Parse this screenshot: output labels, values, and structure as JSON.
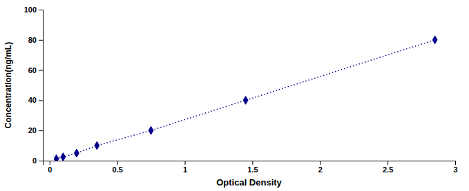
{
  "chart_data": {
    "type": "line",
    "x": [
      0.05,
      0.1,
      0.2,
      0.35,
      0.75,
      1.45,
      2.85
    ],
    "values": [
      1.25,
      2.5,
      5.0,
      10.0,
      20.0,
      40.0,
      80.0
    ],
    "color": "#00008B",
    "marker": "diamond",
    "line_style": "dotted",
    "xlabel": "Optical Density",
    "ylabel": "Concentration(ng/mL)",
    "xlim": [
      -0.05,
      3.0
    ],
    "ylim": [
      0,
      100
    ],
    "xticks": [
      0,
      0.5,
      1,
      1.5,
      2,
      2.5,
      3
    ],
    "yticks": [
      0,
      20,
      40,
      60,
      80,
      100
    ],
    "grid": false
  }
}
